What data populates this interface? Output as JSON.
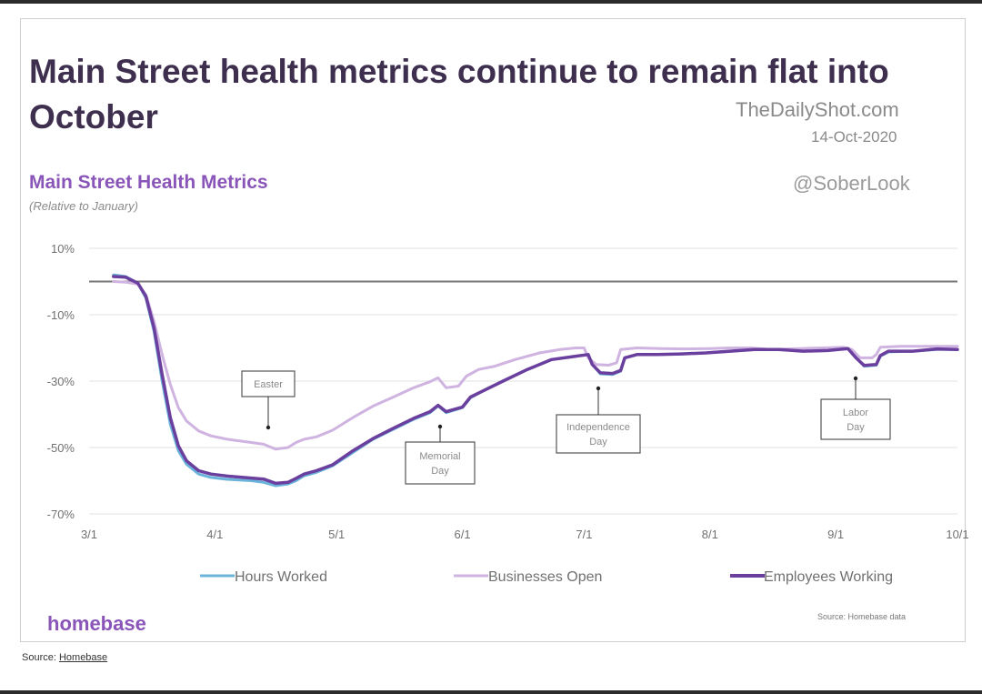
{
  "header": {
    "title_line1": "Main Street health metrics continue to remain flat into",
    "title_line2": "October"
  },
  "watermark": {
    "site": "TheDailyShot.com",
    "date": "14-Oct-2020",
    "handle": "@SoberLook"
  },
  "brand": "homebase",
  "source_note": "Source: Homebase data",
  "caption": {
    "prefix": "Source: ",
    "link": "Homebase"
  },
  "colors": {
    "hours_worked": "#6ab4dc",
    "businesses_open": "#cfb3e0",
    "employees_working": "#6a3f9e",
    "zero_line": "#777777",
    "grid": "#ececec",
    "accent": "#8a55b8"
  },
  "chart_data": {
    "type": "line",
    "title": "Main Street Health Metrics",
    "subtitle": "(Relative to January)",
    "x_start": "3/1",
    "x_end": "10/1",
    "xlim_days": [
      0,
      214
    ],
    "x_ticks": [
      {
        "label": "3/1",
        "day": 0
      },
      {
        "label": "4/1",
        "day": 31
      },
      {
        "label": "5/1",
        "day": 61
      },
      {
        "label": "6/1",
        "day": 92
      },
      {
        "label": "7/1",
        "day": 122
      },
      {
        "label": "8/1",
        "day": 153
      },
      {
        "label": "9/1",
        "day": 184
      },
      {
        "label": "10/1",
        "day": 214
      }
    ],
    "y_ticks": [
      {
        "label": "10%",
        "value": 10
      },
      {
        "label": "-10%",
        "value": -10
      },
      {
        "label": "-30%",
        "value": -30
      },
      {
        "label": "-50%",
        "value": -50
      },
      {
        "label": "-70%",
        "value": -70
      }
    ],
    "ylim": [
      -70,
      10
    ],
    "grid": true,
    "legend_position": "bottom",
    "series": [
      {
        "name": "Hours Worked",
        "color": "#6ab4dc",
        "points": [
          [
            6,
            2
          ],
          [
            9,
            1.5
          ],
          [
            12,
            -0.5
          ],
          [
            14,
            -5
          ],
          [
            16,
            -15
          ],
          [
            18,
            -30
          ],
          [
            20,
            -43
          ],
          [
            22,
            -51
          ],
          [
            24,
            -55
          ],
          [
            27,
            -58
          ],
          [
            30,
            -59
          ],
          [
            34,
            -59.6
          ],
          [
            40,
            -60
          ],
          [
            43,
            -60.5
          ],
          [
            46,
            -61.5
          ],
          [
            49,
            -61
          ],
          [
            51,
            -60
          ],
          [
            53,
            -58.5
          ],
          [
            56,
            -57.5
          ],
          [
            60,
            -55.5
          ],
          [
            65,
            -51.5
          ],
          [
            70,
            -47.5
          ],
          [
            75,
            -44.5
          ],
          [
            80,
            -41.5
          ],
          [
            84,
            -39.5
          ],
          [
            86,
            -37.5
          ],
          [
            88,
            -39.5
          ],
          [
            92,
            -38
          ],
          [
            94,
            -35
          ],
          [
            97,
            -33
          ],
          [
            102,
            -30
          ],
          [
            108,
            -26.5
          ],
          [
            114,
            -23.5
          ],
          [
            120,
            -22.5
          ],
          [
            123,
            -22
          ],
          [
            124,
            -25
          ],
          [
            126,
            -27.8
          ],
          [
            129,
            -28
          ],
          [
            131,
            -27
          ],
          [
            132,
            -23
          ],
          [
            135,
            -22
          ],
          [
            140,
            -22
          ],
          [
            146,
            -21.8
          ],
          [
            152,
            -21.5
          ],
          [
            158,
            -21
          ],
          [
            164,
            -20.5
          ],
          [
            170,
            -20.5
          ],
          [
            176,
            -21
          ],
          [
            182,
            -20.8
          ],
          [
            187,
            -20.2
          ],
          [
            189,
            -23
          ],
          [
            191,
            -25.5
          ],
          [
            194,
            -25.2
          ],
          [
            195,
            -22.5
          ],
          [
            197,
            -21.2
          ],
          [
            203,
            -21
          ],
          [
            209,
            -20.5
          ],
          [
            214,
            -20.5
          ]
        ]
      },
      {
        "name": "Businesses Open",
        "color": "#cfb3e0",
        "points": [
          [
            6,
            0
          ],
          [
            9,
            -0.2
          ],
          [
            12,
            -0.8
          ],
          [
            14,
            -4
          ],
          [
            16,
            -12
          ],
          [
            18,
            -22
          ],
          [
            20,
            -31
          ],
          [
            22,
            -38
          ],
          [
            24,
            -42
          ],
          [
            27,
            -45
          ],
          [
            30,
            -46.5
          ],
          [
            34,
            -47.5
          ],
          [
            40,
            -48.5
          ],
          [
            43,
            -49
          ],
          [
            46,
            -50.5
          ],
          [
            49,
            -50
          ],
          [
            51,
            -48.5
          ],
          [
            53,
            -47.5
          ],
          [
            56,
            -46.8
          ],
          [
            60,
            -44.8
          ],
          [
            65,
            -41
          ],
          [
            70,
            -37.5
          ],
          [
            75,
            -34.8
          ],
          [
            80,
            -32
          ],
          [
            84,
            -30.2
          ],
          [
            86,
            -29
          ],
          [
            88,
            -32
          ],
          [
            91,
            -31.5
          ],
          [
            93,
            -28.5
          ],
          [
            96,
            -26.5
          ],
          [
            100,
            -25.5
          ],
          [
            105,
            -23.5
          ],
          [
            111,
            -21.5
          ],
          [
            116,
            -20.5
          ],
          [
            120,
            -20
          ],
          [
            122,
            -20
          ],
          [
            123,
            -23
          ],
          [
            125,
            -25
          ],
          [
            128,
            -25.2
          ],
          [
            130,
            -24.5
          ],
          [
            131,
            -20.5
          ],
          [
            135,
            -20
          ],
          [
            141,
            -20.2
          ],
          [
            147,
            -20.3
          ],
          [
            153,
            -20.2
          ],
          [
            158,
            -20
          ],
          [
            163,
            -20
          ],
          [
            168,
            -20.5
          ],
          [
            175,
            -20.2
          ],
          [
            181,
            -20
          ],
          [
            186,
            -19.8
          ],
          [
            188,
            -20.5
          ],
          [
            190,
            -23
          ],
          [
            193,
            -23
          ],
          [
            194,
            -22
          ],
          [
            195,
            -19.8
          ],
          [
            200,
            -19.5
          ],
          [
            207,
            -19.5
          ],
          [
            214,
            -19.5
          ]
        ]
      },
      {
        "name": "Employees Working",
        "color": "#6a3f9e",
        "points": [
          [
            6,
            1.5
          ],
          [
            9,
            1.3
          ],
          [
            12,
            -0.5
          ],
          [
            14,
            -4.5
          ],
          [
            16,
            -14
          ],
          [
            18,
            -28
          ],
          [
            20,
            -41
          ],
          [
            22,
            -49.5
          ],
          [
            24,
            -54
          ],
          [
            27,
            -57
          ],
          [
            30,
            -58
          ],
          [
            34,
            -58.6
          ],
          [
            40,
            -59.2
          ],
          [
            43,
            -59.5
          ],
          [
            46,
            -60.8
          ],
          [
            49,
            -60.5
          ],
          [
            51,
            -59.3
          ],
          [
            53,
            -58
          ],
          [
            56,
            -57
          ],
          [
            60,
            -55.2
          ],
          [
            65,
            -51
          ],
          [
            70,
            -47.3
          ],
          [
            75,
            -44.2
          ],
          [
            80,
            -41.2
          ],
          [
            84,
            -39.2
          ],
          [
            86,
            -37.3
          ],
          [
            88,
            -39.2
          ],
          [
            92,
            -37.8
          ],
          [
            94,
            -34.8
          ],
          [
            97,
            -33
          ],
          [
            102,
            -30
          ],
          [
            108,
            -26.5
          ],
          [
            114,
            -23.5
          ],
          [
            120,
            -22.5
          ],
          [
            123,
            -22
          ],
          [
            124,
            -25
          ],
          [
            126,
            -27.5
          ],
          [
            129,
            -27.7
          ],
          [
            131,
            -26.8
          ],
          [
            132,
            -23
          ],
          [
            135,
            -22
          ],
          [
            140,
            -22
          ],
          [
            146,
            -21.8
          ],
          [
            152,
            -21.5
          ],
          [
            158,
            -21
          ],
          [
            164,
            -20.5
          ],
          [
            170,
            -20.5
          ],
          [
            176,
            -21
          ],
          [
            182,
            -20.8
          ],
          [
            187,
            -20.2
          ],
          [
            189,
            -23
          ],
          [
            191,
            -25.3
          ],
          [
            194,
            -25
          ],
          [
            195,
            -22.3
          ],
          [
            197,
            -21
          ],
          [
            203,
            -21
          ],
          [
            209,
            -20.3
          ],
          [
            214,
            -20.5
          ]
        ]
      }
    ],
    "annotations": [
      {
        "label_lines": [
          "Easter"
        ],
        "day": 44
      },
      {
        "label_lines": [
          "Memorial",
          "Day"
        ],
        "day": 87
      },
      {
        "label_lines": [
          "Independence",
          "Day"
        ],
        "day": 125
      },
      {
        "label_lines": [
          "Labor",
          "Day"
        ],
        "day": 190
      }
    ]
  }
}
